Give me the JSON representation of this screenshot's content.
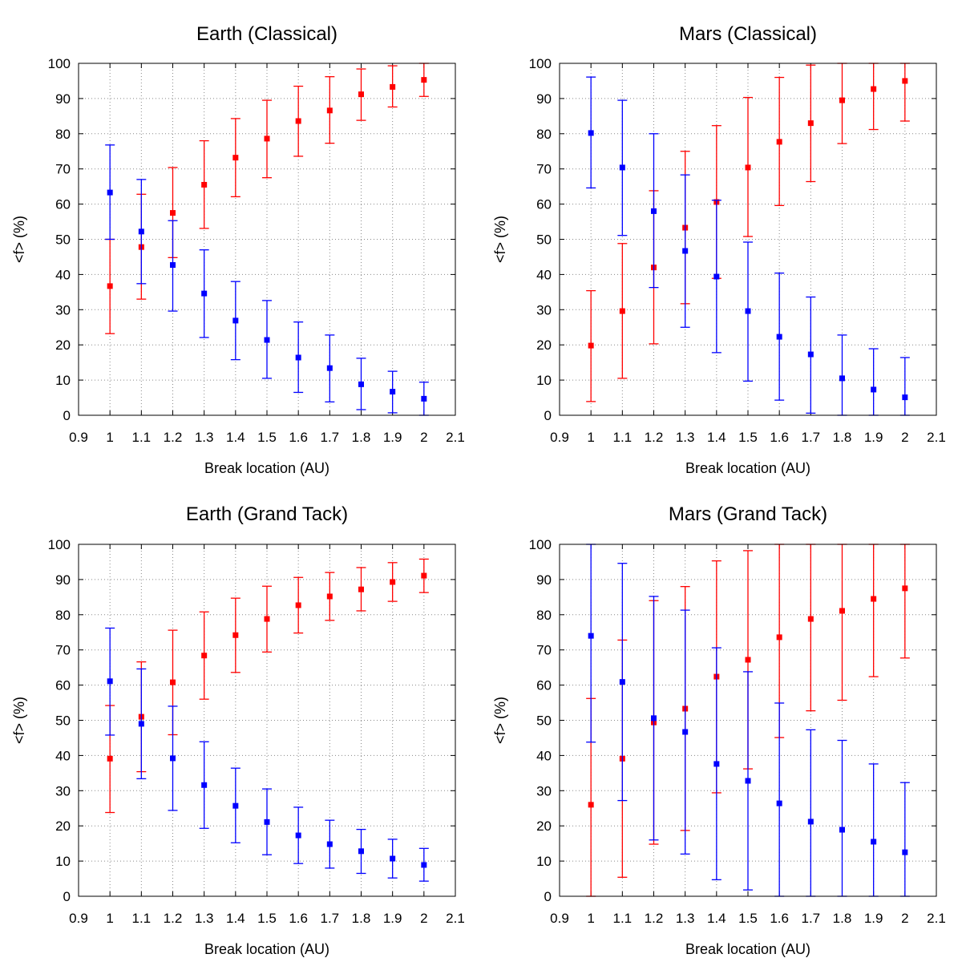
{
  "chart_data": [
    {
      "type": "scatter",
      "title": "Earth (Classical)",
      "xlabel": "Break location (AU)",
      "ylabel": "<f> (%)",
      "xlim": [
        0.9,
        2.1
      ],
      "ylim": [
        0,
        100
      ],
      "xticks": [
        "0.9",
        "1",
        "1.1",
        "1.2",
        "1.3",
        "1.4",
        "1.5",
        "1.6",
        "1.7",
        "1.8",
        "1.9",
        "2",
        "2.1"
      ],
      "yticks": [
        "0",
        "10",
        "20",
        "30",
        "40",
        "50",
        "60",
        "70",
        "80",
        "90",
        "100"
      ],
      "grid": true,
      "x": [
        1.0,
        1.1,
        1.2,
        1.3,
        1.4,
        1.5,
        1.6,
        1.7,
        1.8,
        1.9,
        2.0
      ],
      "series": [
        {
          "color": "#ff0000",
          "values": [
            36.7,
            47.8,
            57.5,
            65.5,
            73.2,
            78.6,
            83.6,
            86.6,
            91.2,
            93.3,
            95.3
          ],
          "err_low": [
            23.2,
            33.0,
            44.8,
            53.1,
            62.1,
            67.5,
            73.6,
            77.3,
            83.8,
            87.6,
            90.6
          ],
          "err_high": [
            50.0,
            62.8,
            70.4,
            78.0,
            84.3,
            89.5,
            93.5,
            96.2,
            98.4,
            99.3,
            100.0
          ]
        },
        {
          "color": "#0000ff",
          "values": [
            63.3,
            52.2,
            42.7,
            34.6,
            26.9,
            21.4,
            16.4,
            13.4,
            8.8,
            6.7,
            4.7
          ],
          "err_low": [
            50.0,
            37.4,
            29.6,
            22.1,
            15.8,
            10.5,
            6.5,
            3.8,
            1.6,
            0.7,
            0.0
          ],
          "err_high": [
            76.8,
            67.0,
            55.3,
            47.0,
            38.0,
            32.6,
            26.5,
            22.8,
            16.2,
            12.5,
            9.4
          ]
        }
      ]
    },
    {
      "type": "scatter",
      "title": "Mars (Classical)",
      "xlabel": "Break location (AU)",
      "ylabel": "<f> (%)",
      "xlim": [
        0.9,
        2.1
      ],
      "ylim": [
        0,
        100
      ],
      "xticks": [
        "0.9",
        "1",
        "1.1",
        "1.2",
        "1.3",
        "1.4",
        "1.5",
        "1.6",
        "1.7",
        "1.8",
        "1.9",
        "2",
        "2.1"
      ],
      "yticks": [
        "0",
        "10",
        "20",
        "30",
        "40",
        "50",
        "60",
        "70",
        "80",
        "90",
        "100"
      ],
      "grid": true,
      "x": [
        1.0,
        1.1,
        1.2,
        1.3,
        1.4,
        1.5,
        1.6,
        1.7,
        1.8,
        1.9,
        2.0
      ],
      "series": [
        {
          "color": "#ff0000",
          "values": [
            19.8,
            29.6,
            42.0,
            53.3,
            60.6,
            70.4,
            77.7,
            83.0,
            89.5,
            92.7,
            95.0
          ],
          "err_low": [
            3.9,
            10.5,
            20.3,
            31.7,
            38.9,
            50.8,
            59.6,
            66.4,
            77.2,
            81.2,
            83.6
          ],
          "err_high": [
            35.4,
            48.8,
            63.8,
            75.0,
            82.3,
            90.3,
            96.0,
            99.5,
            100.0,
            100.0,
            100.0
          ]
        },
        {
          "color": "#0000ff",
          "values": [
            80.2,
            70.4,
            58.0,
            46.7,
            39.4,
            29.6,
            22.3,
            17.3,
            10.5,
            7.3,
            5.1
          ],
          "err_low": [
            64.6,
            51.1,
            36.3,
            25.0,
            17.8,
            9.7,
            4.3,
            0.6,
            0.0,
            0.0,
            0.0
          ],
          "err_high": [
            96.1,
            89.5,
            80.0,
            68.3,
            61.1,
            49.2,
            40.4,
            33.6,
            22.8,
            18.9,
            16.4
          ]
        }
      ]
    },
    {
      "type": "scatter",
      "title": "Earth (Grand Tack)",
      "xlabel": "Break location (AU)",
      "ylabel": "<f> (%)",
      "xlim": [
        0.9,
        2.1
      ],
      "ylim": [
        0,
        100
      ],
      "xticks": [
        "0.9",
        "1",
        "1.1",
        "1.2",
        "1.3",
        "1.4",
        "1.5",
        "1.6",
        "1.7",
        "1.8",
        "1.9",
        "2",
        "2.1"
      ],
      "yticks": [
        "0",
        "10",
        "20",
        "30",
        "40",
        "50",
        "60",
        "70",
        "80",
        "90",
        "100"
      ],
      "grid": true,
      "x": [
        1.0,
        1.1,
        1.2,
        1.3,
        1.4,
        1.5,
        1.6,
        1.7,
        1.8,
        1.9,
        2.0
      ],
      "series": [
        {
          "color": "#ff0000",
          "values": [
            39.1,
            51.0,
            60.8,
            68.4,
            74.2,
            78.8,
            82.7,
            85.2,
            87.2,
            89.3,
            91.1
          ],
          "err_low": [
            23.8,
            35.4,
            45.9,
            56.0,
            63.6,
            69.4,
            74.8,
            78.4,
            81.1,
            83.8,
            86.3
          ],
          "err_high": [
            54.2,
            66.6,
            75.6,
            80.8,
            84.7,
            88.1,
            90.6,
            92.0,
            93.4,
            94.8,
            95.8
          ]
        },
        {
          "color": "#0000ff",
          "values": [
            61.1,
            49.0,
            39.2,
            31.6,
            25.7,
            21.1,
            17.3,
            14.8,
            12.8,
            10.7,
            8.9
          ],
          "err_low": [
            45.8,
            33.4,
            24.4,
            19.3,
            15.2,
            11.8,
            9.3,
            8.0,
            6.5,
            5.2,
            4.3
          ],
          "err_high": [
            76.2,
            64.6,
            54.0,
            43.9,
            36.4,
            30.5,
            25.3,
            21.6,
            19.0,
            16.2,
            13.6
          ]
        }
      ]
    },
    {
      "type": "scatter",
      "title": "Mars (Grand Tack)",
      "xlabel": "Break location (AU)",
      "ylabel": "<f> (%)",
      "xlim": [
        0.9,
        2.1
      ],
      "ylim": [
        0,
        100
      ],
      "xticks": [
        "0.9",
        "1",
        "1.1",
        "1.2",
        "1.3",
        "1.4",
        "1.5",
        "1.6",
        "1.7",
        "1.8",
        "1.9",
        "2",
        "2.1"
      ],
      "yticks": [
        "0",
        "10",
        "20",
        "30",
        "40",
        "50",
        "60",
        "70",
        "80",
        "90",
        "100"
      ],
      "grid": true,
      "x": [
        1.0,
        1.1,
        1.2,
        1.3,
        1.4,
        1.5,
        1.6,
        1.7,
        1.8,
        1.9,
        2.0
      ],
      "series": [
        {
          "color": "#ff0000",
          "values": [
            26.0,
            39.1,
            49.4,
            53.3,
            62.4,
            67.2,
            73.6,
            78.8,
            81.1,
            84.5,
            87.5
          ],
          "err_low": [
            0.0,
            5.4,
            14.8,
            18.7,
            29.4,
            36.2,
            45.1,
            52.7,
            55.7,
            62.4,
            67.7
          ],
          "err_high": [
            56.2,
            72.8,
            84.0,
            88.0,
            95.3,
            98.2,
            100.0,
            100.0,
            100.0,
            100.0,
            100.0
          ]
        },
        {
          "color": "#0000ff",
          "values": [
            74.0,
            60.9,
            50.6,
            46.7,
            37.6,
            32.8,
            26.4,
            21.2,
            18.9,
            15.5,
            12.5
          ],
          "err_low": [
            43.8,
            27.2,
            16.0,
            12.0,
            4.7,
            1.8,
            0.0,
            0.0,
            0.0,
            0.0,
            0.0
          ],
          "err_high": [
            100.0,
            94.6,
            85.2,
            81.3,
            70.6,
            63.8,
            54.9,
            47.3,
            44.3,
            37.6,
            32.3
          ]
        }
      ]
    }
  ]
}
